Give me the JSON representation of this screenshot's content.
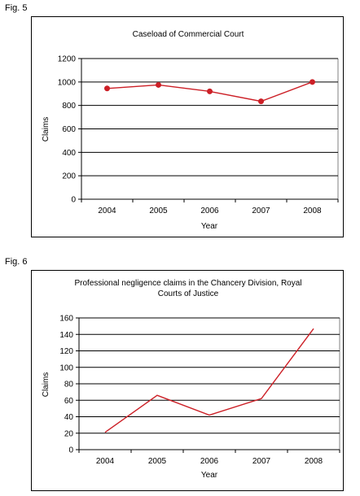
{
  "figures": {
    "fig5_label": "Fig. 5",
    "fig6_label": "Fig. 6"
  },
  "chart_data": [
    {
      "type": "line",
      "title": "Caseload of Commercial Court",
      "xlabel": "Year",
      "ylabel": "Claims",
      "categories": [
        "2004",
        "2005",
        "2006",
        "2007",
        "2008"
      ],
      "series": [
        {
          "values": [
            945,
            975,
            920,
            835,
            1000
          ]
        }
      ],
      "ylim": [
        0,
        1200
      ],
      "yticks": [
        "0",
        "200",
        "400",
        "600",
        "800",
        "1000",
        "1200"
      ],
      "markers": true,
      "grid": true,
      "line_color": "#cc1f26"
    },
    {
      "type": "line",
      "title": "Professional negligence claims in the Chancery Division, Royal Courts of Justice",
      "title_lines": [
        "Professional negligence claims in the Chancery Division, Royal",
        "Courts of Justice"
      ],
      "xlabel": "Year",
      "ylabel": "Claims",
      "categories": [
        "2004",
        "2005",
        "2006",
        "2007",
        "2008"
      ],
      "series": [
        {
          "values": [
            21,
            66,
            42,
            62,
            147
          ]
        }
      ],
      "ylim": [
        0,
        160
      ],
      "yticks": [
        "0",
        "20",
        "40",
        "60",
        "80",
        "100",
        "120",
        "140",
        "160"
      ],
      "markers": false,
      "grid": true,
      "line_color": "#cc1f26"
    }
  ]
}
